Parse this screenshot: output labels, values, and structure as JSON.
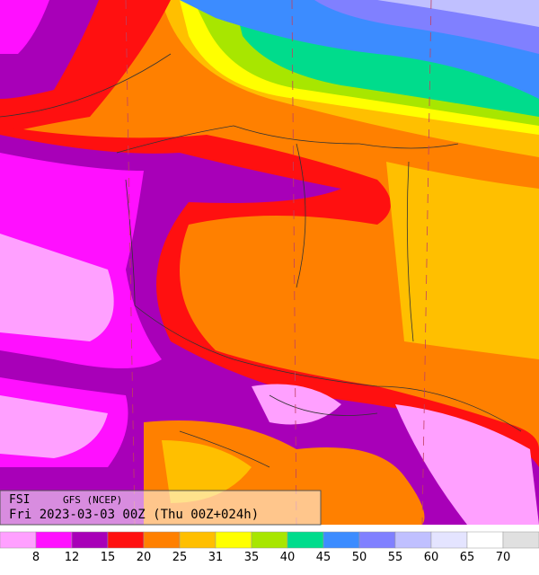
{
  "header": {
    "index": "FSI",
    "model": "GFS (NCEP)",
    "valid": "Fri 2023-03-03 00Z (Thu 00Z+024h)"
  },
  "legend": {
    "colors": [
      "#ffa0ff",
      "#ff10ff",
      "#a800b8",
      "#ff1010",
      "#ff8000",
      "#ffbf00",
      "#ffff00",
      "#a8e600",
      "#00dc8c",
      "#3c8cff",
      "#8080ff",
      "#c0c0ff",
      "#e4e4ff",
      "#ffffff",
      "#e0e0e0"
    ],
    "labels": [
      "8",
      "12",
      "15",
      "20",
      "25",
      "31",
      "35",
      "40",
      "45",
      "50",
      "55",
      "60",
      "65",
      "70"
    ]
  }
}
